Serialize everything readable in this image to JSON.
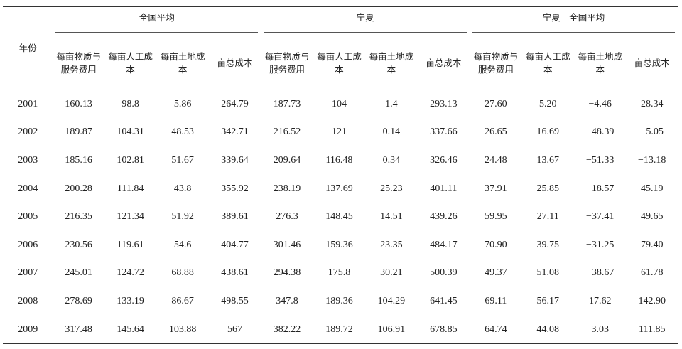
{
  "header": {
    "year_label": "年份",
    "groups": [
      "全国平均",
      "宁夏",
      "宁夏—全国平均"
    ],
    "columns": [
      "每亩物质与服务费用",
      "每亩人工成本",
      "每亩土地成本",
      "亩总成本"
    ]
  },
  "rows": [
    {
      "year": "2001",
      "cells": [
        "160.13",
        "98.8",
        "5.86",
        "264.79",
        "187.73",
        "104",
        "1.4",
        "293.13",
        "27.60",
        "5.20",
        "−4.46",
        "28.34"
      ]
    },
    {
      "year": "2002",
      "cells": [
        "189.87",
        "104.31",
        "48.53",
        "342.71",
        "216.52",
        "121",
        "0.14",
        "337.66",
        "26.65",
        "16.69",
        "−48.39",
        "−5.05"
      ]
    },
    {
      "year": "2003",
      "cells": [
        "185.16",
        "102.81",
        "51.67",
        "339.64",
        "209.64",
        "116.48",
        "0.34",
        "326.46",
        "24.48",
        "13.67",
        "−51.33",
        "−13.18"
      ]
    },
    {
      "year": "2004",
      "cells": [
        "200.28",
        "111.84",
        "43.8",
        "355.92",
        "238.19",
        "137.69",
        "25.23",
        "401.11",
        "37.91",
        "25.85",
        "−18.57",
        "45.19"
      ]
    },
    {
      "year": "2005",
      "cells": [
        "216.35",
        "121.34",
        "51.92",
        "389.61",
        "276.3",
        "148.45",
        "14.51",
        "439.26",
        "59.95",
        "27.11",
        "−37.41",
        "49.65"
      ]
    },
    {
      "year": "2006",
      "cells": [
        "230.56",
        "119.61",
        "54.6",
        "404.77",
        "301.46",
        "159.36",
        "23.35",
        "484.17",
        "70.90",
        "39.75",
        "−31.25",
        "79.40"
      ]
    },
    {
      "year": "2007",
      "cells": [
        "245.01",
        "124.72",
        "68.88",
        "438.61",
        "294.38",
        "175.8",
        "30.21",
        "500.39",
        "49.37",
        "51.08",
        "−38.67",
        "61.78"
      ]
    },
    {
      "year": "2008",
      "cells": [
        "278.69",
        "133.19",
        "86.67",
        "498.55",
        "347.8",
        "189.36",
        "104.29",
        "641.45",
        "69.11",
        "56.17",
        "17.62",
        "142.90"
      ]
    },
    {
      "year": "2009",
      "cells": [
        "317.48",
        "145.64",
        "103.88",
        "567",
        "382.22",
        "189.72",
        "106.91",
        "678.85",
        "64.74",
        "44.08",
        "3.03",
        "111.85"
      ]
    }
  ]
}
